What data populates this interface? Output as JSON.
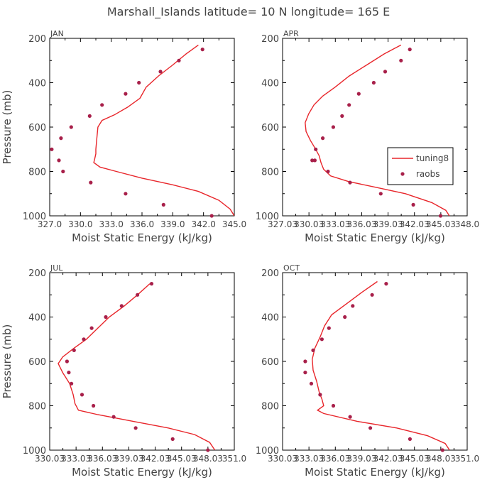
{
  "title": "Marshall_Islands  latitude= 10 N longitude= 165 E",
  "legend": {
    "model_label": "tuning8",
    "obs_label": "raobs"
  },
  "colors": {
    "model_line": "#e8262b",
    "obs_marker": "#a8204a",
    "axis": "#000000",
    "text": "#444444"
  },
  "chart_data": [
    {
      "type": "line",
      "panel": "JAN",
      "xlabel": "Moist Static Energy (kJ/kg)",
      "ylabel": "Pressure (mb)",
      "xlim": [
        327.0,
        345.0
      ],
      "ylim": [
        1000,
        200
      ],
      "xticks": [
        "327.0",
        "330.0",
        "333.0",
        "336.0",
        "339.0",
        "342.0",
        "345.0"
      ],
      "yticks": [
        "200",
        "400",
        "600",
        "800",
        "1000"
      ],
      "model": {
        "name": "tuning8",
        "x": [
          341.5,
          340.3,
          339.0,
          337.6,
          336.4,
          335.8,
          334.6,
          333.3,
          332.1,
          331.7,
          331.6,
          331.5,
          331.5,
          331.4,
          331.3,
          331.9,
          333.5,
          336.0,
          339.0,
          341.5,
          343.5,
          344.6,
          345.0
        ],
        "y": [
          230,
          270,
          320,
          370,
          420,
          470,
          510,
          545,
          570,
          600,
          650,
          700,
          720,
          740,
          760,
          780,
          800,
          830,
          860,
          890,
          930,
          970,
          1000
        ]
      },
      "obs": {
        "name": "raobs",
        "x": [
          341.9,
          339.6,
          337.8,
          335.7,
          334.4,
          332.1,
          330.9,
          329.1,
          328.1,
          327.2,
          327.9,
          328.3,
          331.0,
          334.4,
          338.1,
          342.8
        ],
        "y": [
          250,
          300,
          350,
          400,
          450,
          500,
          550,
          600,
          650,
          700,
          750,
          800,
          850,
          900,
          950,
          1000
        ]
      }
    },
    {
      "type": "line",
      "panel": "APR",
      "xlabel": "Moist Static Energy (kJ/kg)",
      "ylabel": "",
      "xlim": [
        327.03,
        348.03
      ],
      "ylim": [
        1000,
        200
      ],
      "xticks": [
        "327.03",
        "330.03",
        "333.03",
        "336.03",
        "339.03",
        "342.03",
        "345.03",
        "348.0"
      ],
      "yticks": [
        "200",
        "400",
        "600",
        "800",
        "1000"
      ],
      "legend_position": "right",
      "model": {
        "name": "tuning8",
        "x": [
          340.5,
          338.6,
          336.6,
          334.6,
          333.0,
          331.6,
          330.6,
          330.0,
          329.6,
          329.7,
          330.2,
          330.8,
          331.2,
          331.4,
          331.7,
          332.5,
          334.5,
          337.5,
          341.0,
          344.0,
          345.6,
          346.0
        ],
        "y": [
          230,
          270,
          320,
          370,
          420,
          460,
          500,
          540,
          580,
          620,
          660,
          700,
          730,
          760,
          790,
          820,
          845,
          870,
          900,
          940,
          975,
          1000
        ]
      },
      "obs": {
        "name": "raobs",
        "x": [
          341.5,
          340.5,
          338.7,
          337.4,
          335.7,
          334.6,
          333.8,
          332.8,
          331.6,
          330.8,
          330.4,
          330.7,
          332.2,
          334.7,
          338.2,
          341.9,
          345.0
        ],
        "y": [
          250,
          300,
          350,
          400,
          450,
          500,
          550,
          600,
          650,
          700,
          750,
          750,
          800,
          850,
          900,
          950,
          1000
        ]
      }
    },
    {
      "type": "line",
      "panel": "JUL",
      "xlabel": "Moist Static Energy (kJ/kg)",
      "ylabel": "Pressure (mb)",
      "xlim": [
        330.03,
        351.0
      ],
      "ylim": [
        1000,
        200
      ],
      "xticks": [
        "330.03",
        "333.03",
        "336.03",
        "339.03",
        "342.03",
        "345.03",
        "348.03",
        "351.0"
      ],
      "yticks": [
        "200",
        "400",
        "600",
        "800",
        "1000"
      ],
      "model": {
        "name": "tuning8",
        "x": [
          341.4,
          340.0,
          338.5,
          336.8,
          335.5,
          334.2,
          332.8,
          331.5,
          331.0,
          331.5,
          332.3,
          332.7,
          332.9,
          333.3,
          335.5,
          339.5,
          343.5,
          346.5,
          348.2,
          348.8
        ],
        "y": [
          250,
          300,
          350,
          400,
          450,
          500,
          540,
          580,
          610,
          650,
          700,
          750,
          790,
          820,
          840,
          870,
          900,
          930,
          965,
          1000
        ]
      },
      "obs": {
        "name": "raobs",
        "x": [
          341.6,
          340.0,
          338.2,
          336.4,
          334.8,
          333.9,
          332.8,
          332.0,
          332.2,
          332.5,
          333.7,
          335.0,
          337.3,
          339.8,
          344.0,
          348.0
        ],
        "y": [
          250,
          300,
          350,
          400,
          450,
          500,
          550,
          600,
          650,
          700,
          750,
          800,
          850,
          900,
          950,
          1000
        ]
      }
    },
    {
      "type": "line",
      "panel": "OCT",
      "xlabel": "Moist Static Energy (kJ/kg)",
      "ylabel": "",
      "xlim": [
        330.03,
        351.0
      ],
      "ylim": [
        1000,
        200
      ],
      "xticks": [
        "330.03",
        "333.03",
        "336.03",
        "339.03",
        "342.03",
        "345.03",
        "348.03",
        "351.0"
      ],
      "yticks": [
        "200",
        "400",
        "600",
        "800",
        "1000"
      ],
      "model": {
        "name": "tuning8",
        "x": [
          340.8,
          339.0,
          337.3,
          335.6,
          334.8,
          334.3,
          333.7,
          333.4,
          333.5,
          333.9,
          334.2,
          334.5,
          334.7,
          334.0,
          334.7,
          338.5,
          343.0,
          346.5,
          348.5,
          349.0
        ],
        "y": [
          240,
          290,
          340,
          390,
          440,
          490,
          540,
          590,
          640,
          690,
          740,
          770,
          800,
          820,
          835,
          870,
          900,
          935,
          970,
          1000
        ]
      },
      "obs": {
        "name": "raobs",
        "x": [
          341.8,
          340.2,
          338.0,
          337.1,
          335.3,
          334.5,
          333.5,
          332.6,
          332.6,
          333.3,
          334.3,
          335.8,
          337.7,
          340.0,
          344.5,
          348.2
        ],
        "y": [
          250,
          300,
          350,
          400,
          450,
          500,
          550,
          600,
          650,
          700,
          750,
          800,
          850,
          900,
          950,
          1000
        ]
      }
    }
  ]
}
